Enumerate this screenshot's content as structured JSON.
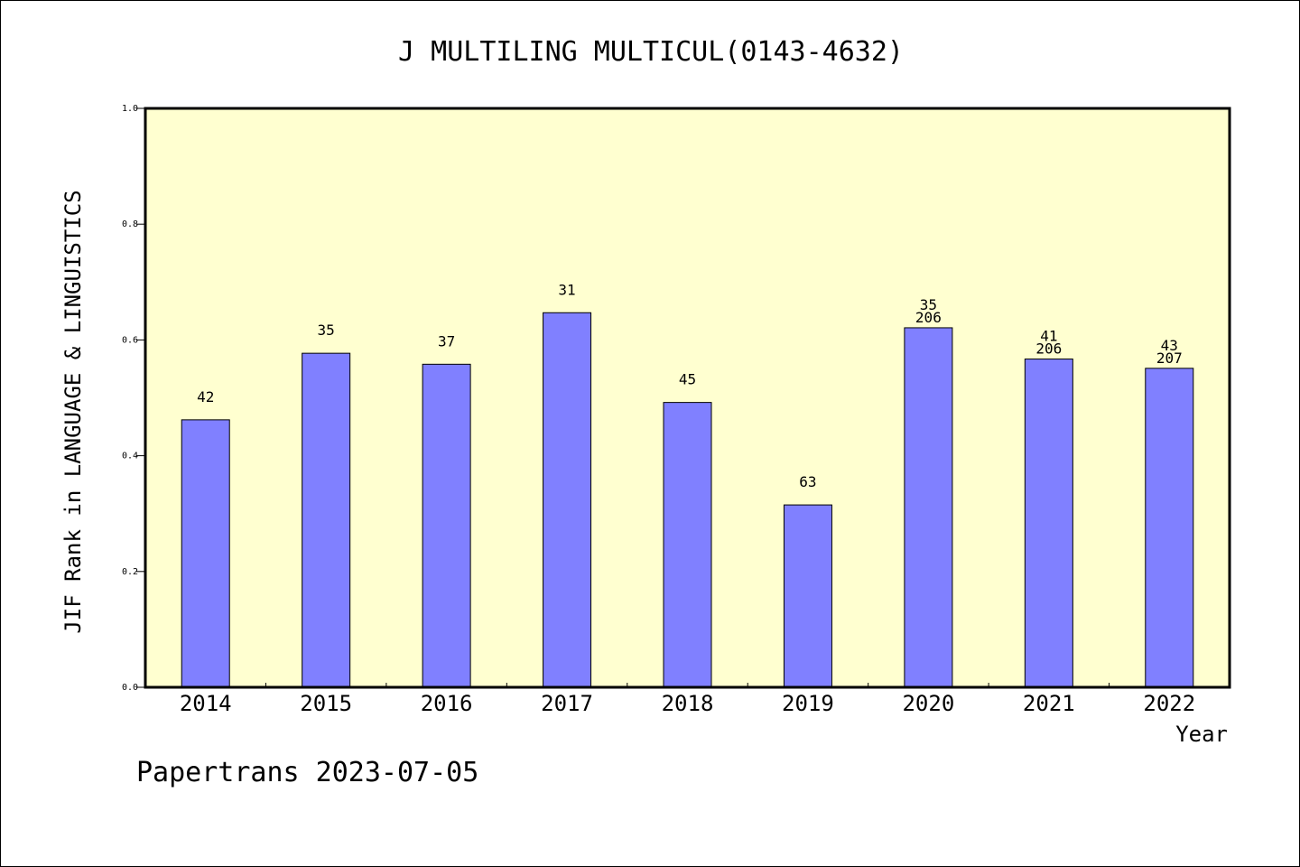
{
  "chart_data": {
    "type": "bar",
    "title": "J MULTILING MULTICUL(0143-4632)",
    "xlabel": "Year",
    "ylabel": "JIF Rank in LANGUAGE & LINGUISTICS",
    "ylim": [
      0,
      1.0
    ],
    "yticks": [
      "0.0",
      "0.2",
      "0.4",
      "0.6",
      "0.8",
      "1.0"
    ],
    "categories": [
      "2014",
      "2015",
      "2016",
      "2017",
      "2018",
      "2019",
      "2020",
      "2021",
      "2022"
    ],
    "values": [
      0.462,
      0.577,
      0.558,
      0.647,
      0.492,
      0.315,
      0.621,
      0.567,
      0.551
    ],
    "rank_labels": [
      "42",
      "35",
      "37",
      "31",
      "45",
      "63",
      "35",
      "41",
      "43"
    ],
    "total_labels": [
      "",
      "",
      "",
      "",
      "",
      "",
      "206",
      "206",
      "207"
    ],
    "grid": false,
    "colors": {
      "bar": "#8080ff",
      "plot_background": "#ffffd0",
      "axis": "#000000"
    }
  },
  "footer": "Papertrans 2023-07-05"
}
